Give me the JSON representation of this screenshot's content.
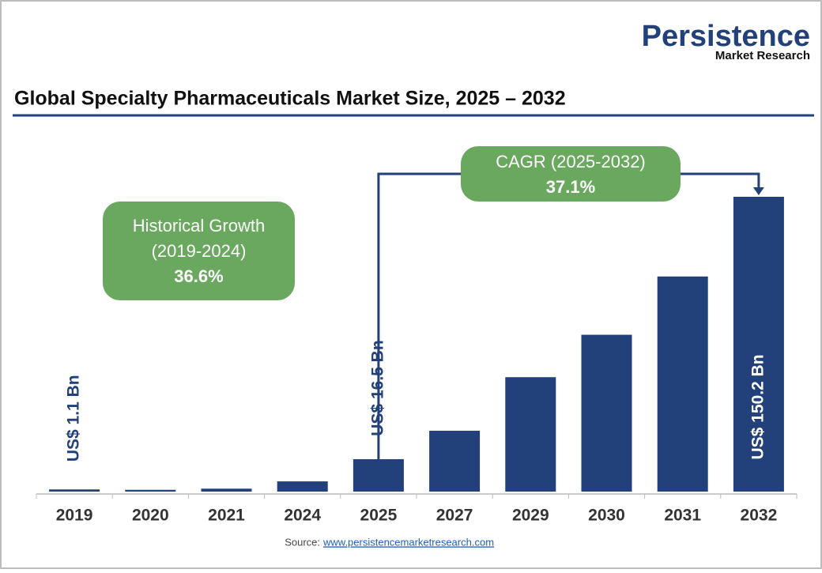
{
  "chart_data": {
    "type": "bar",
    "title": "Global Specialty Pharmaceuticals Market Size, 2025 – 2032",
    "brand": {
      "name": "Persistence",
      "tagline": "Market Research"
    },
    "categories": [
      "2019",
      "2020",
      "2021",
      "2024",
      "2025",
      "2027",
      "2029",
      "2030",
      "2031",
      "2032"
    ],
    "values": [
      1.1,
      0.9,
      1.5,
      5.2,
      16.5,
      31.0,
      58.3,
      79.9,
      109.6,
      150.2
    ],
    "value_labels": [
      "US$ 1.1 Bn",
      null,
      null,
      null,
      "US$ 16.5 Bn",
      null,
      null,
      null,
      null,
      "US$ 150.2 Bn"
    ],
    "color": "#22407a",
    "annotations": [
      {
        "lines": [
          "Historical Growth",
          "(2019-2024)"
        ],
        "value": "36.6%",
        "color": "#6aa85f"
      },
      {
        "lines": [
          "CAGR (2025-2032)"
        ],
        "value": "37.1%",
        "color": "#6aa85f"
      }
    ],
    "source": {
      "label": "Source:",
      "url": "www.persistencemarketresearch.com"
    }
  }
}
